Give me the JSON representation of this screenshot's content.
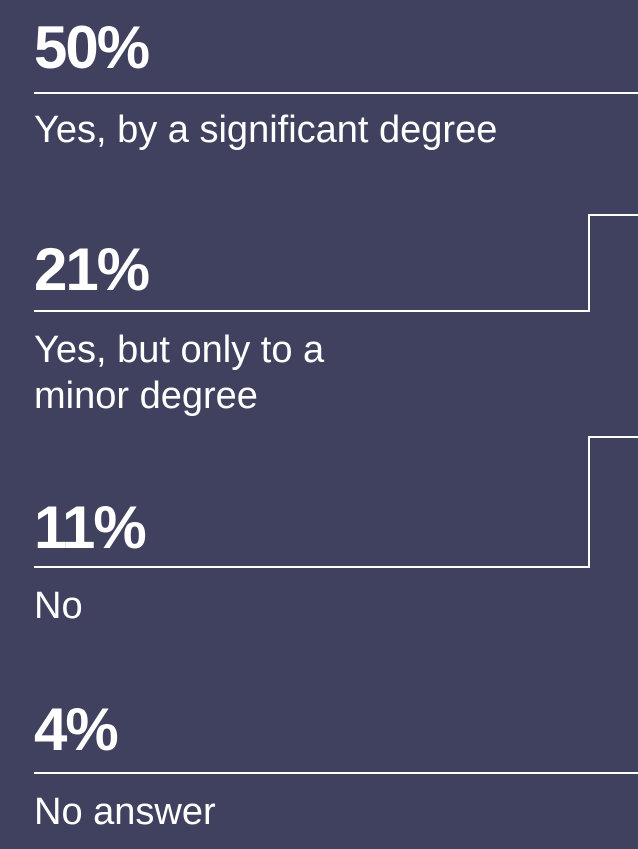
{
  "chart_data": {
    "type": "bar",
    "categories": [
      "Yes, by a significant degree",
      "Yes, but only to a minor degree",
      "No",
      "No answer"
    ],
    "values": [
      50,
      21,
      11,
      4
    ],
    "value_labels": [
      "50%",
      "21%",
      "11%",
      "4%"
    ],
    "title": "",
    "xlabel": "",
    "ylabel": "",
    "ylim": [
      0,
      100
    ]
  },
  "colors": {
    "background": "#40415e",
    "foreground": "#ffffff"
  }
}
